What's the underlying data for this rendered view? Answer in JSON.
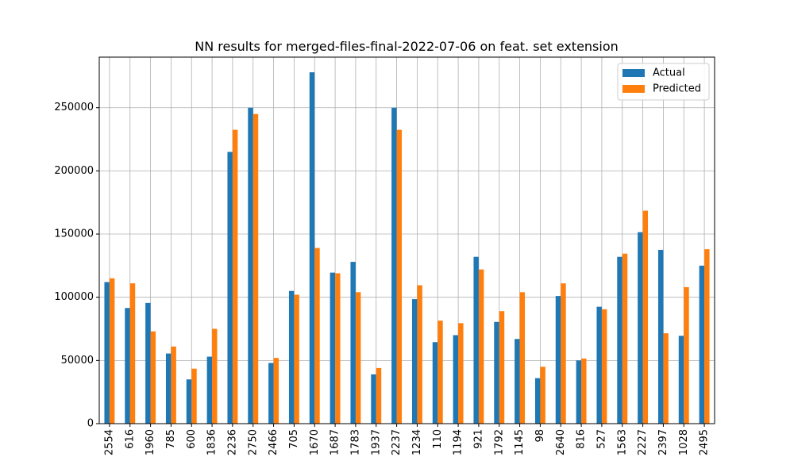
{
  "chart_data": {
    "type": "bar",
    "title": "NN results for merged-files-final-2022-07-06 on feat. set extension",
    "xlabel": "",
    "ylabel": "",
    "ylim": [
      0,
      290000
    ],
    "yticks": [
      0,
      50000,
      100000,
      150000,
      200000,
      250000
    ],
    "grid": true,
    "legend": "top-right",
    "categories": [
      "2554",
      "616",
      "1960",
      "785",
      "600",
      "1836",
      "2236",
      "2750",
      "2466",
      "705",
      "1670",
      "1687",
      "1783",
      "1937",
      "2237",
      "1234",
      "110",
      "1194",
      "921",
      "1792",
      "1145",
      "98",
      "2640",
      "816",
      "527",
      "1563",
      "2227",
      "2397",
      "1028",
      "2495"
    ],
    "series": [
      {
        "name": "Actual",
        "color": "#1f77b4",
        "values": [
          112000,
          91500,
          95500,
          55500,
          35000,
          53000,
          215000,
          250000,
          48000,
          105000,
          278000,
          119500,
          128000,
          39000,
          250000,
          98500,
          64500,
          70000,
          132000,
          80500,
          67000,
          36000,
          101000,
          50000,
          92500,
          132000,
          151500,
          137500,
          69500,
          125000
        ]
      },
      {
        "name": "Predicted",
        "color": "#ff7f0e",
        "values": [
          115000,
          111000,
          73000,
          61000,
          43500,
          75000,
          232500,
          245000,
          52000,
          102000,
          139000,
          119000,
          104000,
          44000,
          232500,
          109500,
          81500,
          79500,
          122000,
          89000,
          104000,
          45000,
          111000,
          51500,
          90500,
          134500,
          168500,
          71500,
          108000,
          138000
        ]
      }
    ]
  }
}
